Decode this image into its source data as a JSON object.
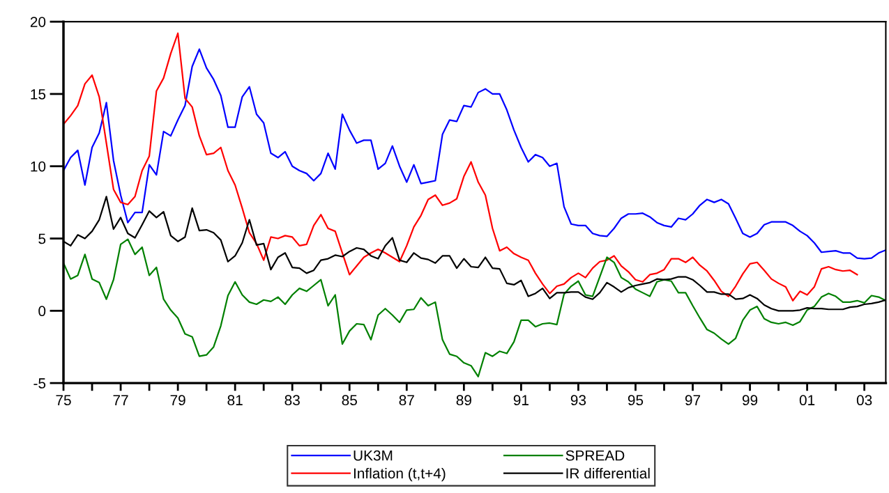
{
  "chart_data": {
    "type": "line",
    "x": [
      1975,
      1975.25,
      1975.5,
      1975.75,
      1976,
      1976.25,
      1976.5,
      1976.75,
      1977,
      1977.25,
      1977.5,
      1977.75,
      1978,
      1978.25,
      1978.5,
      1978.75,
      1979,
      1979.25,
      1979.5,
      1979.75,
      1980,
      1980.25,
      1980.5,
      1980.75,
      1981,
      1981.25,
      1981.5,
      1981.75,
      1982,
      1982.25,
      1982.5,
      1982.75,
      1983,
      1983.25,
      1983.5,
      1983.75,
      1984,
      1984.25,
      1984.5,
      1984.75,
      1985,
      1985.25,
      1985.5,
      1985.75,
      1986,
      1986.25,
      1986.5,
      1986.75,
      1987,
      1987.25,
      1987.5,
      1987.75,
      1988,
      1988.25,
      1988.5,
      1988.75,
      1989,
      1989.25,
      1989.5,
      1989.75,
      1990,
      1990.25,
      1990.5,
      1990.75,
      1991,
      1991.25,
      1991.5,
      1991.75,
      1992,
      1992.25,
      1992.5,
      1992.75,
      1993,
      1993.25,
      1993.5,
      1993.75,
      1994,
      1994.25,
      1994.5,
      1994.75,
      1995,
      1995.25,
      1995.5,
      1995.75,
      1996,
      1996.25,
      1996.5,
      1996.75,
      1997,
      1997.25,
      1997.5,
      1997.75,
      1998,
      1998.25,
      1998.5,
      1998.75,
      1999,
      1999.25,
      1999.5,
      1999.75,
      2000,
      2000.25,
      2000.5,
      2000.75,
      2001,
      2001.25,
      2001.5,
      2001.75,
      2002,
      2002.25,
      2002.5,
      2002.75,
      2003,
      2003.25,
      2003.5,
      2003.75
    ],
    "series": [
      {
        "name": "UK3M",
        "color": "#0000ff",
        "values": [
          9.7,
          10.6,
          11.1,
          8.7,
          11.3,
          12.3,
          14.4,
          10.4,
          8.0,
          6.1,
          6.8,
          6.8,
          10.1,
          9.4,
          12.4,
          12.1,
          13.2,
          14.2,
          16.9,
          18.1,
          16.8,
          16.0,
          14.9,
          12.7,
          12.7,
          14.8,
          15.5,
          13.6,
          13.0,
          10.9,
          10.6,
          11.0,
          10.0,
          9.7,
          9.5,
          9.0,
          9.5,
          10.9,
          9.8,
          13.6,
          12.5,
          11.6,
          11.8,
          11.8,
          9.8,
          10.2,
          11.4,
          10.0,
          8.9,
          10.1,
          8.8,
          8.9,
          9.0,
          12.2,
          13.2,
          13.1,
          14.2,
          14.1,
          15.1,
          15.35,
          15.0,
          15.0,
          13.9,
          12.5,
          11.3,
          10.3,
          10.8,
          10.6,
          10.0,
          10.2,
          7.2,
          6.0,
          5.9,
          5.9,
          5.35,
          5.2,
          5.15,
          5.7,
          6.4,
          6.7,
          6.7,
          6.75,
          6.5,
          6.1,
          5.9,
          5.8,
          6.4,
          6.3,
          6.7,
          7.3,
          7.7,
          7.5,
          7.7,
          7.4,
          6.4,
          5.35,
          5.1,
          5.35,
          5.95,
          6.15,
          6.15,
          6.15,
          5.9,
          5.5,
          5.2,
          4.7,
          4.05,
          4.1,
          4.15,
          4.0,
          4.0,
          3.65,
          3.6,
          3.65,
          4.0,
          4.2
        ]
      },
      {
        "name": "Inflation (t,t+4)",
        "color": "#ff0000",
        "values": [
          12.9,
          13.5,
          14.2,
          15.7,
          16.3,
          14.8,
          11.6,
          8.4,
          7.5,
          7.35,
          7.9,
          9.7,
          10.7,
          15.2,
          16.1,
          17.8,
          19.2,
          14.7,
          14.1,
          12.1,
          10.8,
          10.9,
          11.3,
          9.7,
          8.7,
          7.1,
          5.4,
          4.65,
          3.5,
          5.1,
          5.0,
          5.2,
          5.1,
          4.5,
          4.6,
          5.9,
          6.65,
          5.7,
          5.5,
          4.0,
          2.5,
          3.1,
          3.7,
          4.0,
          4.25,
          4.0,
          3.7,
          3.4,
          4.5,
          5.8,
          6.6,
          7.7,
          8.0,
          7.3,
          7.45,
          7.75,
          9.3,
          10.3,
          8.9,
          8.0,
          5.7,
          4.15,
          4.4,
          3.95,
          3.7,
          3.5,
          2.6,
          1.85,
          1.2,
          1.7,
          1.85,
          2.3,
          2.6,
          2.3,
          2.95,
          3.4,
          3.5,
          3.8,
          3.1,
          2.7,
          2.15,
          2.0,
          2.5,
          2.6,
          2.85,
          3.6,
          3.6,
          3.35,
          3.7,
          3.15,
          2.75,
          2.1,
          1.35,
          1.0,
          1.7,
          2.55,
          3.25,
          3.35,
          2.8,
          2.2,
          1.9,
          1.65,
          0.7,
          1.35,
          1.1,
          1.65,
          2.9,
          3.05,
          2.85,
          2.75,
          2.8,
          2.5,
          null,
          null,
          null,
          null
        ]
      },
      {
        "name": "SPREAD",
        "color": "#008000",
        "values": [
          3.3,
          2.2,
          2.45,
          3.9,
          2.2,
          1.95,
          0.8,
          2.15,
          4.6,
          4.95,
          3.9,
          4.4,
          2.45,
          3.0,
          0.8,
          0.05,
          -0.5,
          -1.6,
          -1.8,
          -3.15,
          -3.05,
          -2.5,
          -1.05,
          1.05,
          2.0,
          1.1,
          0.6,
          0.45,
          0.75,
          0.65,
          0.95,
          0.45,
          1.1,
          1.55,
          1.35,
          1.75,
          2.15,
          0.35,
          1.1,
          -2.3,
          -1.4,
          -0.9,
          -0.95,
          -2.0,
          -0.3,
          0.15,
          -0.3,
          -0.8,
          0.05,
          0.1,
          0.9,
          0.35,
          0.6,
          -2.0,
          -3.0,
          -3.15,
          -3.6,
          -3.8,
          -4.55,
          -2.9,
          -3.15,
          -2.8,
          -2.95,
          -2.15,
          -0.65,
          -0.65,
          -1.1,
          -0.9,
          -0.85,
          -0.95,
          1.15,
          1.7,
          2.05,
          1.1,
          1.0,
          2.35,
          3.7,
          3.35,
          2.3,
          2.0,
          1.5,
          1.25,
          1.0,
          2.0,
          2.15,
          2.05,
          1.25,
          1.25,
          0.35,
          -0.5,
          -1.3,
          -1.55,
          -1.95,
          -2.3,
          -1.9,
          -0.65,
          0.05,
          0.3,
          -0.55,
          -0.8,
          -0.9,
          -0.8,
          -1.0,
          -0.75,
          0.05,
          0.3,
          0.95,
          1.2,
          1.0,
          0.6,
          0.6,
          0.7,
          0.55,
          1.05,
          0.95,
          0.7
        ]
      },
      {
        "name": "IR differential",
        "color": "#000000",
        "values": [
          4.8,
          4.5,
          5.25,
          5.0,
          5.5,
          6.3,
          7.9,
          5.65,
          6.45,
          5.35,
          5.05,
          5.95,
          6.9,
          6.45,
          6.85,
          5.2,
          4.8,
          5.1,
          7.1,
          5.55,
          5.6,
          5.4,
          4.9,
          3.4,
          3.8,
          4.7,
          6.3,
          4.55,
          4.65,
          2.85,
          3.7,
          4.0,
          3.0,
          2.95,
          2.6,
          2.8,
          3.5,
          3.6,
          3.85,
          3.75,
          4.1,
          4.35,
          4.25,
          3.8,
          3.6,
          4.5,
          5.05,
          3.5,
          3.35,
          4.0,
          3.65,
          3.55,
          3.3,
          3.8,
          3.8,
          2.95,
          3.6,
          3.05,
          3.0,
          3.7,
          2.95,
          2.9,
          1.9,
          1.8,
          2.1,
          1.0,
          1.2,
          1.55,
          0.85,
          1.25,
          1.25,
          1.3,
          1.3,
          0.95,
          0.8,
          1.25,
          1.95,
          1.65,
          1.3,
          1.6,
          1.75,
          1.85,
          1.95,
          2.2,
          2.15,
          2.2,
          2.35,
          2.35,
          2.15,
          1.75,
          1.3,
          1.3,
          1.15,
          1.15,
          0.8,
          0.85,
          1.1,
          0.85,
          0.4,
          0.15,
          0.0,
          0.0,
          0.0,
          0.05,
          0.2,
          0.15,
          0.15,
          0.1,
          0.1,
          0.1,
          0.25,
          0.3,
          0.45,
          0.5,
          0.6,
          0.75
        ]
      }
    ],
    "xlim": [
      1975,
      2003.75
    ],
    "xticks": [
      {
        "value": 1975,
        "label": "75"
      },
      {
        "value": 1976,
        "label": null
      },
      {
        "value": 1977,
        "label": "77"
      },
      {
        "value": 1978,
        "label": null
      },
      {
        "value": 1979,
        "label": "79"
      },
      {
        "value": 1980,
        "label": null
      },
      {
        "value": 1981,
        "label": "81"
      },
      {
        "value": 1982,
        "label": null
      },
      {
        "value": 1983,
        "label": "83"
      },
      {
        "value": 1984,
        "label": null
      },
      {
        "value": 1985,
        "label": "85"
      },
      {
        "value": 1986,
        "label": null
      },
      {
        "value": 1987,
        "label": "87"
      },
      {
        "value": 1988,
        "label": null
      },
      {
        "value": 1989,
        "label": "89"
      },
      {
        "value": 1990,
        "label": null
      },
      {
        "value": 1991,
        "label": "91"
      },
      {
        "value": 1992,
        "label": null
      },
      {
        "value": 1993,
        "label": "93"
      },
      {
        "value": 1994,
        "label": null
      },
      {
        "value": 1995,
        "label": "95"
      },
      {
        "value": 1996,
        "label": null
      },
      {
        "value": 1997,
        "label": "97"
      },
      {
        "value": 1998,
        "label": null
      },
      {
        "value": 1999,
        "label": "99"
      },
      {
        "value": 2000,
        "label": null
      },
      {
        "value": 2001,
        "label": "01"
      },
      {
        "value": 2002,
        "label": null
      },
      {
        "value": 2003,
        "label": "03"
      }
    ],
    "ylim": [
      -5,
      20
    ],
    "yticks": [
      -5,
      0,
      5,
      10,
      15,
      20
    ],
    "grid": false,
    "legend": "bottom",
    "marker": "none",
    "line_style": "solid"
  }
}
